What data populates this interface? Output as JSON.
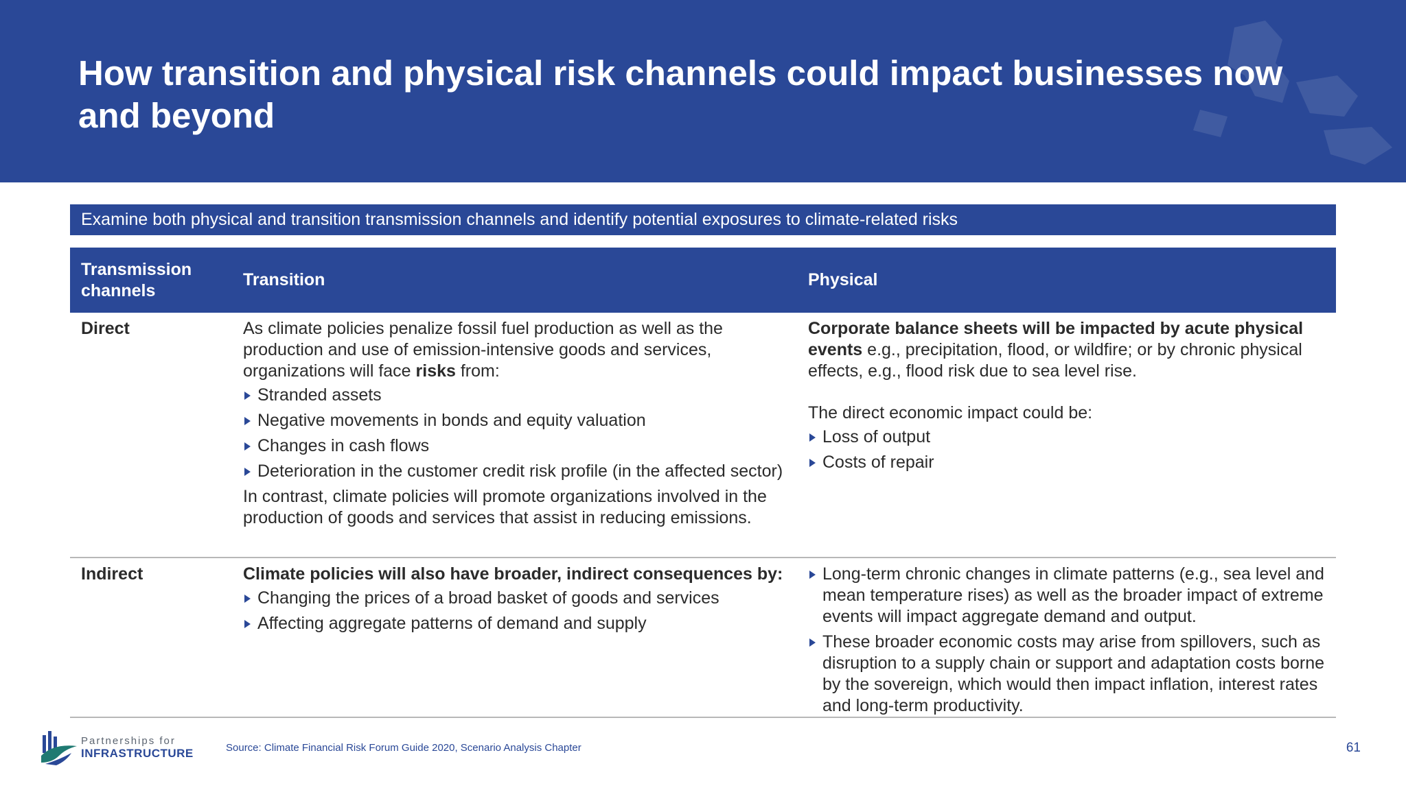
{
  "header": {
    "title": "How transition and physical risk channels could impact businesses now and beyond"
  },
  "banner": {
    "text": "Examine both physical and transition transmission channels and identify potential exposures to climate-related risks"
  },
  "table": {
    "headers": [
      "Transmission channels",
      "Transition",
      "Physical"
    ],
    "direct": {
      "label": "Direct",
      "transition": {
        "intro_a": "As climate policies penalize fossil fuel production as well as the production and use of emission-intensive goods and services, organizations will face ",
        "intro_bold": "risks",
        "intro_b": " from:",
        "bullets": [
          "Stranded assets",
          "Negative movements in bonds and equity valuation",
          "Changes in cash flows",
          "Deterioration in the customer credit risk profile (in the affected sector)"
        ],
        "outro": "In contrast, climate policies will promote organizations involved in the production of goods and services that assist in reducing emissions."
      },
      "physical": {
        "para_bold": "Corporate balance sheets will be impacted by acute physical events",
        "para_rest": " e.g., precipitation, flood, or wildfire; or by chronic physical effects, e.g., flood risk due to sea level rise.",
        "impact_intro": "The direct economic impact could be:",
        "bullets": [
          "Loss of output",
          "Costs of repair"
        ]
      }
    },
    "indirect": {
      "label": "Indirect",
      "transition": {
        "intro_bold": "Climate policies will also have broader, indirect consequences by:",
        "bullets": [
          "Changing the prices of a broad basket of goods and services",
          "Affecting aggregate patterns of demand and supply"
        ]
      },
      "physical": {
        "bullets": [
          "Long-term chronic changes in climate patterns (e.g., sea level and mean temperature rises) as well as the broader impact of extreme events will impact aggregate demand and output.",
          "These broader economic costs may arise from spillovers, such as disruption to a supply chain or support and adaptation costs borne by the sovereign, which would then impact inflation, interest rates and long-term productivity."
        ]
      }
    }
  },
  "footer": {
    "logo_line1": "Partnerships for",
    "logo_line2": "INFRASTRUCTURE",
    "source": "Source: Climate Financial Risk Forum Guide 2020, Scenario Analysis Chapter",
    "page_number": "61"
  },
  "colors": {
    "brand_blue": "#2a4897",
    "logo_teal": "#1f7a72"
  },
  "icons": {
    "bullet": "triangle-bullet-icon",
    "logo": "partnerships-logo-icon"
  }
}
